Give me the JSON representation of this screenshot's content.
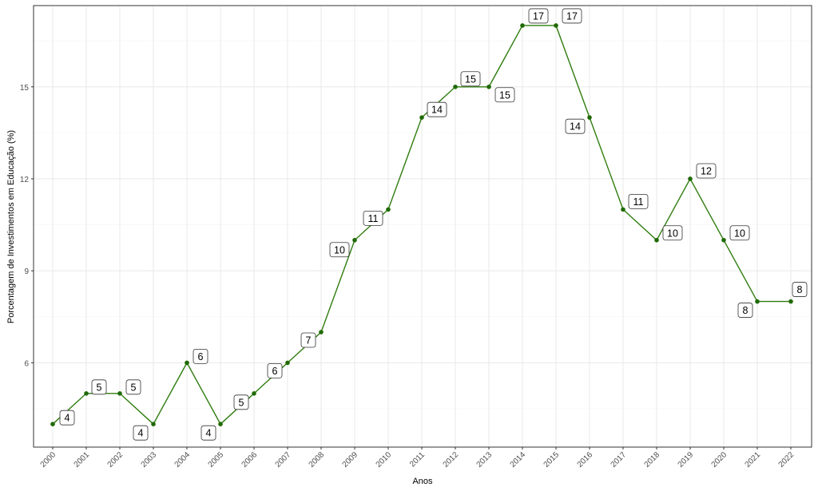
{
  "chart_data": {
    "type": "line",
    "title": "",
    "xlabel": "Anos",
    "ylabel": "Porcentagem de Investimentos em Educação (%)",
    "x": [
      "2000",
      "2001",
      "2002",
      "2003",
      "2004",
      "2005",
      "2006",
      "2007",
      "2008",
      "2009",
      "2010",
      "2011",
      "2012",
      "2013",
      "2014",
      "2015",
      "2016",
      "2017",
      "2018",
      "2019",
      "2020",
      "2021",
      "2022"
    ],
    "values": [
      4,
      5,
      5,
      4,
      6,
      4,
      5,
      6,
      7,
      10,
      11,
      14,
      15,
      15,
      17,
      17,
      14,
      11,
      10,
      12,
      10,
      8,
      8
    ],
    "yticks": [
      6,
      9,
      12,
      15
    ],
    "ylim": [
      3.25,
      17.65
    ],
    "grid": true,
    "data_labels": true,
    "colors": {
      "line": "#2e7d0f",
      "point": "#1f6a00",
      "grid": "#ebebeb",
      "border": "#333333"
    }
  }
}
